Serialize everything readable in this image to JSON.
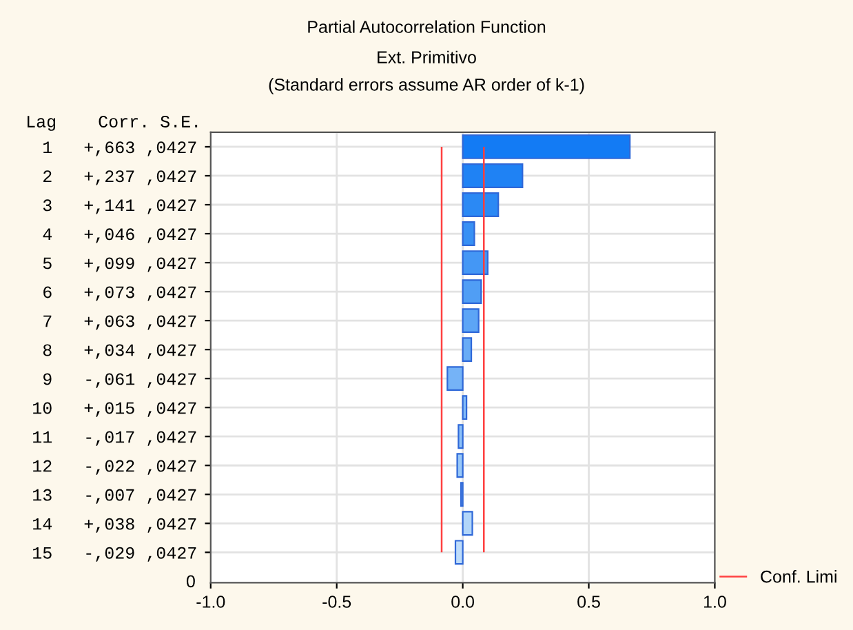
{
  "chart_data": {
    "type": "bar",
    "orientation": "horizontal",
    "title": "Partial Autocorrelation Function",
    "subtitle": "Ext. Primitivo\n(Standard errors assume AR order of k-1)",
    "ylabel": "Lag    Corr. S.E.",
    "categories": [
      " 1   +,663 ,0427",
      " 2   +,237 ,0427",
      " 3   +,141 ,0427",
      " 4   +,046 ,0427",
      " 5   +,099 ,0427",
      " 6   +,073 ,0427",
      " 7   +,063 ,0427",
      " 8   +,034 ,0427",
      " 9   -,061 ,0427",
      "10   +,015 ,0427",
      "11   -,017 ,0427",
      "12   -,022 ,0427",
      "13   -,007 ,0427",
      "14   +,038 ,0427",
      "15   -,029 ,0427"
    ],
    "values": [
      0.663,
      0.237,
      0.141,
      0.046,
      0.099,
      0.073,
      0.063,
      0.034,
      -0.061,
      0.015,
      -0.017,
      -0.022,
      -0.007,
      0.038,
      -0.029
    ],
    "colors": [
      "#137bf4",
      "#1f82f4",
      "#2b89f4",
      "#3890f4",
      "#4497f5",
      "#509ef5",
      "#5ca5f6",
      "#68acf6",
      "#75b3f7",
      "#81baf7",
      "#8dc1f8",
      "#99c8f8",
      "#a6cff9",
      "#b2d6f9",
      "#bedcfa"
    ],
    "xlim": [
      -1,
      1
    ],
    "xticks": [
      {
        "value": -1,
        "label": "-1.0"
      },
      {
        "value": -0.5,
        "label": "-0.5"
      },
      {
        "value": 0,
        "label": "0.0"
      },
      {
        "value": 0.5,
        "label": "0.5"
      },
      {
        "value": 1,
        "label": "1.0"
      }
    ],
    "ref_lines": [
      {
        "axis": "x",
        "value": -0.0837,
        "label": "Conf. Limi",
        "color": "#ff4040"
      },
      {
        "axis": "x",
        "value": 0.0837,
        "color": "#ff4040"
      }
    ],
    "annotations": [
      "0"
    ],
    "grid": true,
    "legend": "bottom right"
  }
}
